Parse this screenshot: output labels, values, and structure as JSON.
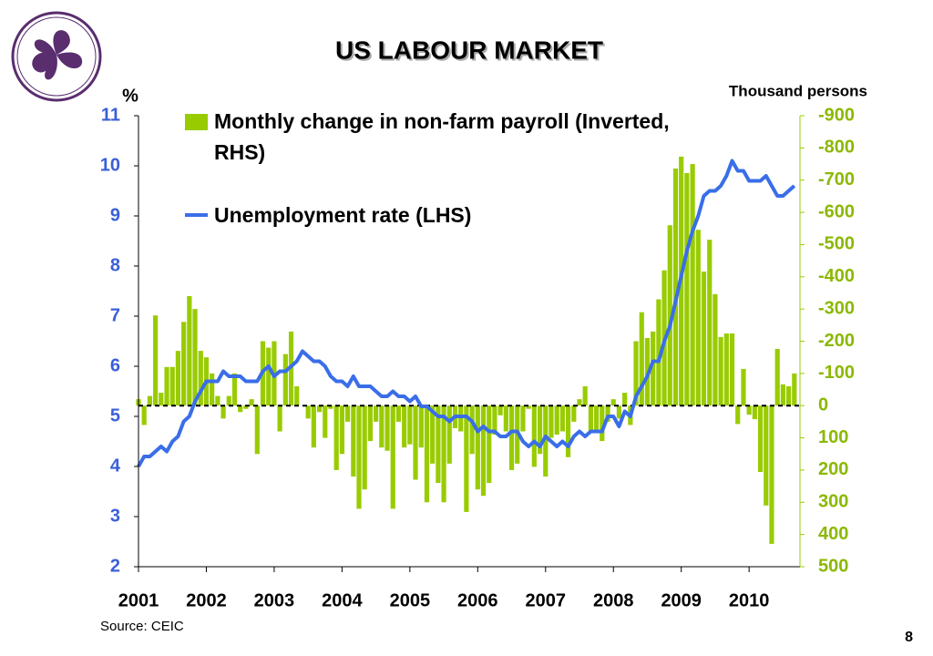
{
  "chart_data": {
    "type": "bar-line",
    "title": "US LABOUR MARKET",
    "y_label": "%",
    "y2_label": "Thousand persons",
    "source": "Source: CEIC",
    "page_number": "8",
    "xlim": [
      2001,
      2010.75
    ],
    "xticks": [
      2001,
      2002,
      2003,
      2004,
      2005,
      2006,
      2007,
      2008,
      2009,
      2010
    ],
    "ylim": [
      2,
      11
    ],
    "yticks": [
      2,
      3,
      4,
      5,
      6,
      7,
      8,
      9,
      10,
      11
    ],
    "y2lim": [
      500,
      -900
    ],
    "y2ticks": [
      500,
      400,
      300,
      200,
      100,
      0,
      -100,
      -200,
      -300,
      -400,
      -500,
      -600,
      -700,
      -800,
      -900
    ],
    "x": [
      2001.0,
      2001.083,
      2001.167,
      2001.25,
      2001.333,
      2001.417,
      2001.5,
      2001.583,
      2001.667,
      2001.75,
      2001.833,
      2001.917,
      2002.0,
      2002.083,
      2002.167,
      2002.25,
      2002.333,
      2002.417,
      2002.5,
      2002.583,
      2002.667,
      2002.75,
      2002.833,
      2002.917,
      2003.0,
      2003.083,
      2003.167,
      2003.25,
      2003.333,
      2003.417,
      2003.5,
      2003.583,
      2003.667,
      2003.75,
      2003.833,
      2003.917,
      2004.0,
      2004.083,
      2004.167,
      2004.25,
      2004.333,
      2004.417,
      2004.5,
      2004.583,
      2004.667,
      2004.75,
      2004.833,
      2004.917,
      2005.0,
      2005.083,
      2005.167,
      2005.25,
      2005.333,
      2005.417,
      2005.5,
      2005.583,
      2005.667,
      2005.75,
      2005.833,
      2005.917,
      2006.0,
      2006.083,
      2006.167,
      2006.25,
      2006.333,
      2006.417,
      2006.5,
      2006.583,
      2006.667,
      2006.75,
      2006.833,
      2006.917,
      2007.0,
      2007.083,
      2007.167,
      2007.25,
      2007.333,
      2007.417,
      2007.5,
      2007.583,
      2007.667,
      2007.75,
      2007.833,
      2007.917,
      2008.0,
      2008.083,
      2008.167,
      2008.25,
      2008.333,
      2008.417,
      2008.5,
      2008.583,
      2008.667,
      2008.75,
      2008.833,
      2008.917,
      2009.0,
      2009.083,
      2009.167,
      2009.25,
      2009.333,
      2009.417,
      2009.5,
      2009.583,
      2009.667,
      2009.75,
      2009.833,
      2009.917,
      2010.0,
      2010.083,
      2010.167,
      2010.25,
      2010.333,
      2010.417,
      2010.5,
      2010.583,
      2010.667
    ],
    "series": [
      {
        "name": "Monthly change in non-farm payroll (Inverted, RHS)",
        "kind": "bar",
        "axis": "y2",
        "color": "#99cc00",
        "values": [
          -20,
          60,
          -30,
          -280,
          -40,
          -120,
          -120,
          -170,
          -260,
          -340,
          -300,
          -170,
          -150,
          -100,
          -30,
          40,
          -30,
          -100,
          20,
          10,
          -20,
          150,
          -200,
          -180,
          -200,
          80,
          -160,
          -230,
          -60,
          0,
          40,
          130,
          20,
          100,
          10,
          200,
          150,
          50,
          220,
          320,
          260,
          110,
          50,
          130,
          140,
          320,
          50,
          130,
          120,
          230,
          130,
          300,
          180,
          240,
          300,
          180,
          70,
          80,
          330,
          150,
          260,
          280,
          240,
          90,
          30,
          80,
          200,
          180,
          80,
          10,
          190,
          150,
          220,
          100,
          90,
          80,
          160,
          50,
          -20,
          -60,
          80,
          80,
          110,
          50,
          -20,
          40,
          -40,
          60,
          -200,
          -290,
          -210,
          -230,
          -330,
          -420,
          -560,
          -736,
          -773,
          -722,
          -750,
          -546,
          -416,
          -515,
          -346,
          -213,
          -224,
          -224,
          57,
          -114,
          28,
          42,
          206,
          310,
          429,
          -176,
          -66,
          -60,
          -100
        ]
      },
      {
        "name": "Unemployment rate (LHS)",
        "kind": "line",
        "axis": "y",
        "color": "#3a6ee8",
        "values": [
          4.0,
          4.2,
          4.2,
          4.3,
          4.4,
          4.3,
          4.5,
          4.6,
          4.9,
          5.0,
          5.3,
          5.5,
          5.7,
          5.7,
          5.7,
          5.9,
          5.8,
          5.8,
          5.8,
          5.7,
          5.7,
          5.7,
          5.9,
          6.0,
          5.8,
          5.9,
          5.9,
          6.0,
          6.1,
          6.3,
          6.2,
          6.1,
          6.1,
          6.0,
          5.8,
          5.7,
          5.7,
          5.6,
          5.8,
          5.6,
          5.6,
          5.6,
          5.5,
          5.4,
          5.4,
          5.5,
          5.4,
          5.4,
          5.3,
          5.4,
          5.2,
          5.2,
          5.1,
          5.0,
          5.0,
          4.9,
          5.0,
          5.0,
          5.0,
          4.9,
          4.7,
          4.8,
          4.7,
          4.7,
          4.6,
          4.6,
          4.7,
          4.7,
          4.5,
          4.4,
          4.5,
          4.4,
          4.6,
          4.5,
          4.4,
          4.5,
          4.4,
          4.6,
          4.7,
          4.6,
          4.7,
          4.7,
          4.7,
          5.0,
          5.0,
          4.8,
          5.1,
          5.0,
          5.4,
          5.6,
          5.8,
          6.1,
          6.1,
          6.5,
          6.8,
          7.3,
          7.8,
          8.3,
          8.7,
          9.0,
          9.4,
          9.5,
          9.5,
          9.6,
          9.8,
          10.1,
          9.9,
          9.9,
          9.7,
          9.7,
          9.7,
          9.8,
          9.6,
          9.4,
          9.4,
          9.5,
          9.6
        ]
      }
    ]
  }
}
